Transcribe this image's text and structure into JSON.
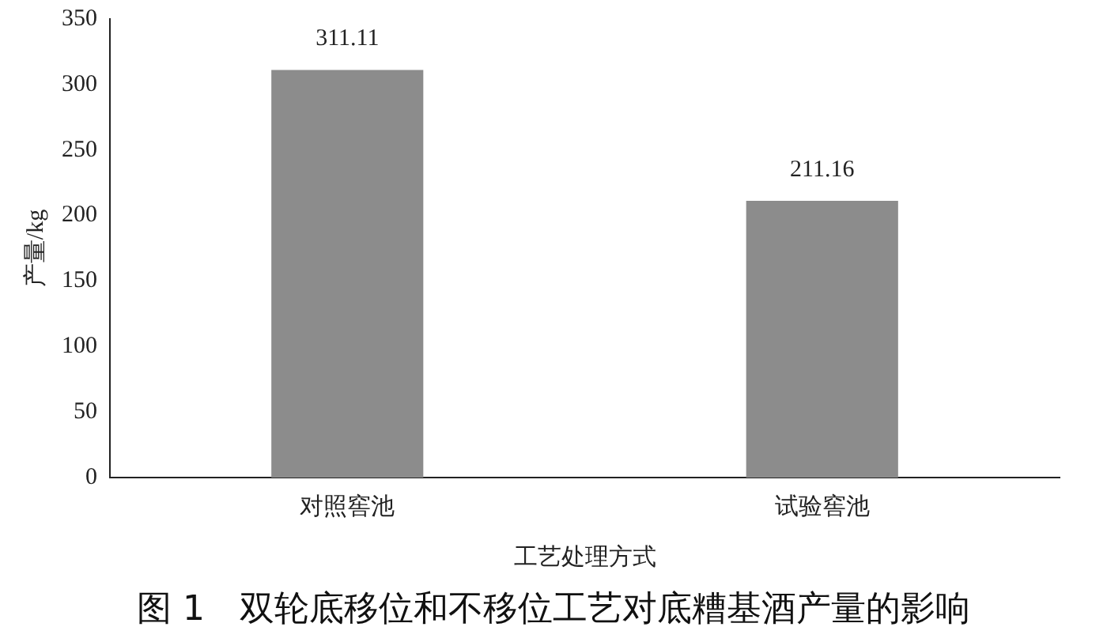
{
  "chart_data": {
    "type": "bar",
    "xlabel": "工艺处理方式",
    "ylabel": "产量/kg",
    "categories": [
      "对照窖池",
      "试验窖池"
    ],
    "values": [
      311.11,
      211.16
    ],
    "color": "#8c8c8c",
    "ylim": [
      0,
      350
    ],
    "yticks": [
      0,
      50,
      100,
      150,
      200,
      250,
      300,
      350
    ],
    "grid": false,
    "legend": false,
    "data_labels": true,
    "annotations": [
      "图 1　双轮底移位和不移位工艺对底糟基酒产量的影响"
    ]
  }
}
